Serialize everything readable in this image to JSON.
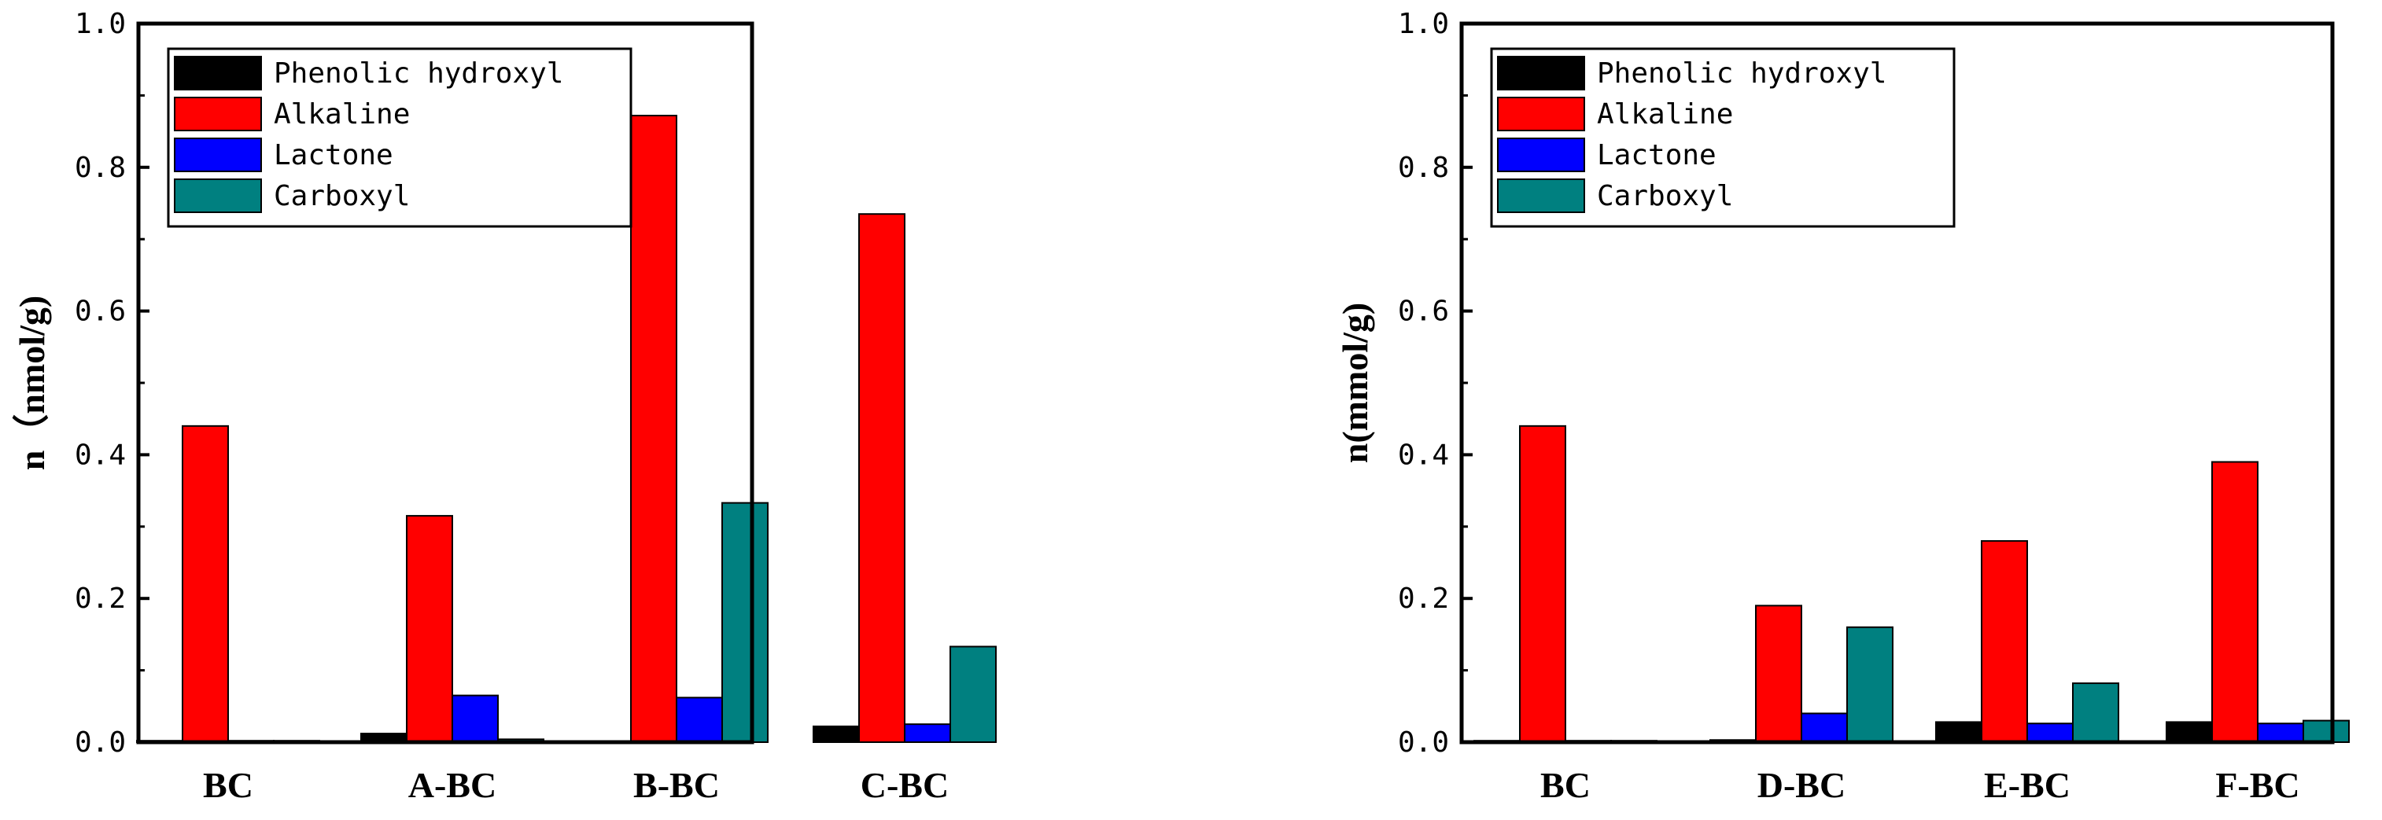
{
  "chart_data": [
    {
      "type": "bar",
      "ylabel": "n（nmol/g)",
      "ylim": [
        0,
        1.0
      ],
      "yticks": [
        "0.0",
        "0.2",
        "0.4",
        "0.6",
        "0.8",
        "1.0"
      ],
      "categories": [
        "BC",
        "A-BC",
        "B-BC",
        "C-BC"
      ],
      "legend_position": "top-left",
      "series": [
        {
          "name": "Phenolic hydroxyl",
          "color": "#000000",
          "values": [
            0.002,
            0.012,
            0.001,
            0.022
          ]
        },
        {
          "name": "Alkaline",
          "color": "#ff0000",
          "values": [
            0.44,
            0.315,
            0.872,
            0.735
          ]
        },
        {
          "name": "Lactone",
          "color": "#0000ff",
          "values": [
            0.002,
            0.065,
            0.062,
            0.025
          ]
        },
        {
          "name": "Carboxyl",
          "color": "#008080",
          "values": [
            0.002,
            0.004,
            0.333,
            0.133
          ]
        }
      ]
    },
    {
      "type": "bar",
      "ylabel": "n(mmol/g)",
      "ylim": [
        0,
        1.0
      ],
      "yticks": [
        "0.0",
        "0.2",
        "0.4",
        "0.6",
        "0.8",
        "1.0"
      ],
      "categories": [
        "BC",
        "D-BC",
        "E-BC",
        "F-BC"
      ],
      "legend_position": "top-left",
      "series": [
        {
          "name": "Phenolic hydroxyl",
          "color": "#000000",
          "values": [
            0.002,
            0.003,
            0.028,
            0.028
          ]
        },
        {
          "name": "Alkaline",
          "color": "#ff0000",
          "values": [
            0.44,
            0.19,
            0.28,
            0.39
          ]
        },
        {
          "name": "Lactone",
          "color": "#0000ff",
          "values": [
            0.002,
            0.04,
            0.026,
            0.026
          ]
        },
        {
          "name": "Carboxyl",
          "color": "#008080",
          "values": [
            0.002,
            0.16,
            0.082,
            0.03
          ]
        }
      ]
    }
  ]
}
